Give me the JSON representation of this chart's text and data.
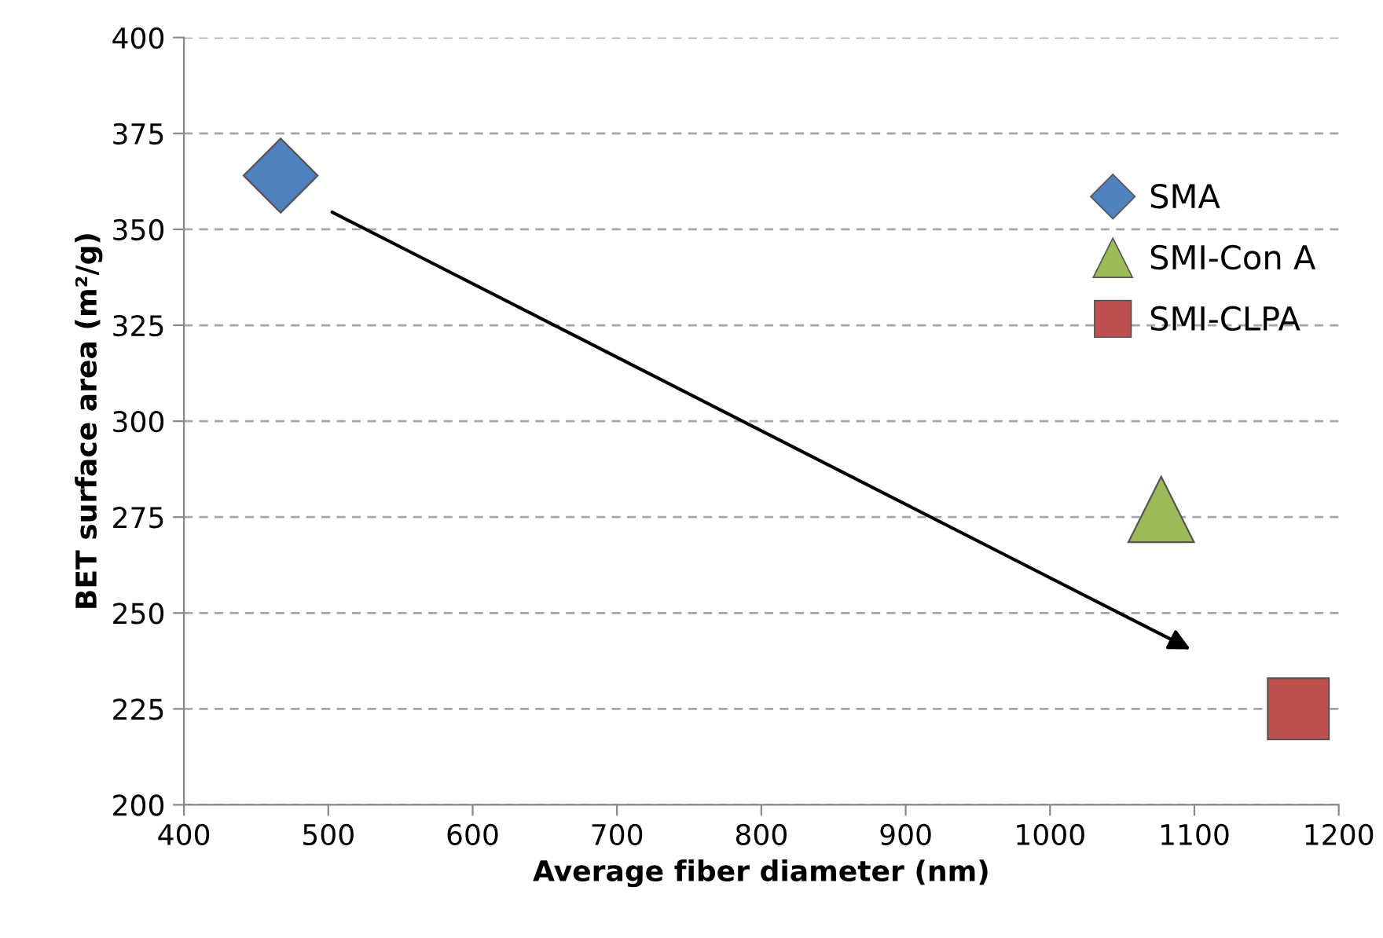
{
  "chart_data": {
    "type": "scatter",
    "xlabel": "Average fiber diameter (nm)",
    "ylabel": "BET surface area (m²/g)",
    "xlim": [
      400,
      1200
    ],
    "xticks": [
      400,
      500,
      600,
      700,
      800,
      900,
      1000,
      1100,
      1200
    ],
    "ylim": [
      200,
      400
    ],
    "yticks": [
      200,
      225,
      250,
      275,
      300,
      325,
      350,
      375,
      400
    ],
    "grid": "y",
    "legend": "top right",
    "series": [
      {
        "name": "SMA",
        "color": "#4f81bd",
        "marker": "diamond",
        "x": [
          467
        ],
        "values": [
          364
        ]
      },
      {
        "name": "SMI-Con A",
        "color": "#9bbb59",
        "marker": "triangle",
        "x": [
          1077
        ],
        "values": [
          277
        ]
      },
      {
        "name": "SMI-CLPA",
        "color": "#c0504d",
        "marker": "square",
        "x": [
          1172
        ],
        "values": [
          225
        ]
      }
    ]
  }
}
